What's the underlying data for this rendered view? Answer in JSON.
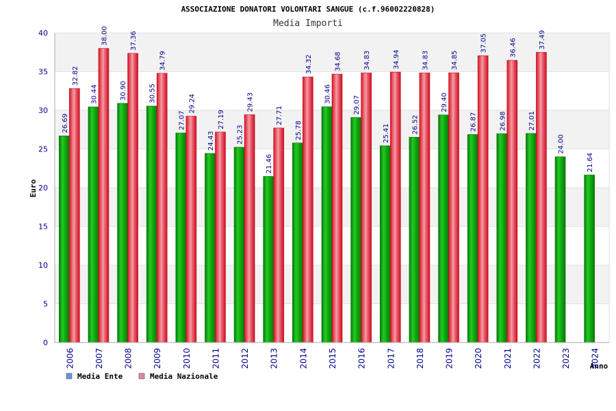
{
  "chart_data": {
    "type": "bar",
    "title": "ASSOCIAZIONE DONATORI VOLONTARI SANGUE (c.f.96002220828)",
    "subtitle": "Media Importi",
    "xlabel": "Anno",
    "ylabel": "Euro",
    "ylim": [
      0,
      40
    ],
    "yticks": [
      0,
      5,
      10,
      15,
      20,
      25,
      30,
      35,
      40
    ],
    "grid": "horizontal bands",
    "legend_position": "bottom-left",
    "categories": [
      "2006",
      "2007",
      "2008",
      "2009",
      "2010",
      "2011",
      "2012",
      "2013",
      "2014",
      "2015",
      "2016",
      "2017",
      "2018",
      "2019",
      "2020",
      "2021",
      "2022",
      "2023",
      "2024"
    ],
    "series": [
      {
        "name": "Media Ente",
        "color": "#11aa11",
        "legend_color": "#6699dd",
        "values": [
          26.69,
          30.44,
          30.9,
          30.55,
          27.07,
          24.43,
          25.23,
          21.46,
          25.78,
          30.46,
          29.07,
          25.41,
          26.52,
          29.4,
          26.87,
          26.98,
          27.01,
          24.0,
          21.64
        ],
        "labels": [
          "26.69",
          "30.44",
          "30.90",
          "30.55",
          "27.07",
          "24.43",
          "25.23",
          "21.46",
          "25.78",
          "30.46",
          "29.07",
          "25.41",
          "26.52",
          "29.40",
          "26.87",
          "26.98",
          "27.01",
          "24.00",
          "21.64"
        ]
      },
      {
        "name": "Media Nazionale",
        "color": "#dd1122",
        "legend_color": "#dd88aa",
        "values": [
          32.82,
          38.0,
          37.36,
          34.79,
          29.24,
          27.19,
          29.43,
          27.71,
          34.32,
          34.68,
          34.83,
          34.94,
          34.83,
          34.85,
          37.05,
          36.46,
          37.49,
          null,
          null
        ],
        "labels": [
          "32.82",
          "38.00",
          "37.36",
          "34.79",
          "29.24",
          "27.19",
          "29.43",
          "27.71",
          "34.32",
          "34.68",
          "34.83",
          "34.94",
          "34.83",
          "34.85",
          "37.05",
          "36.46",
          "37.49",
          null,
          null
        ]
      }
    ]
  }
}
